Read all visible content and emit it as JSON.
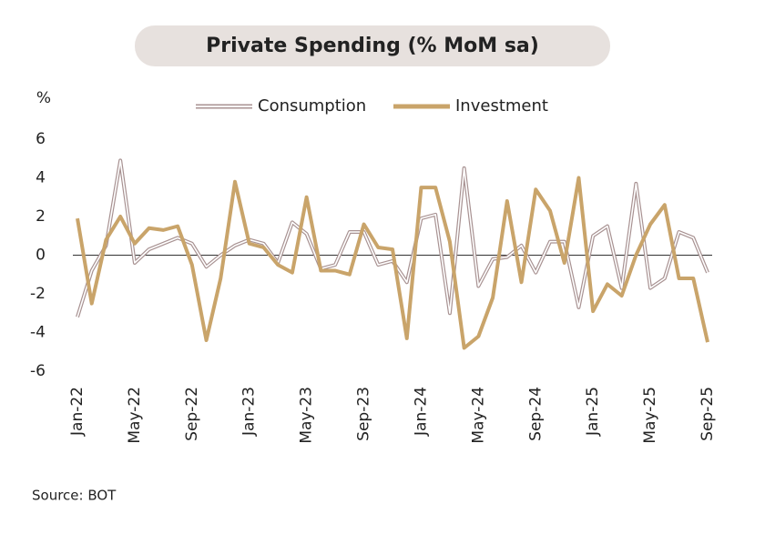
{
  "chart_data": {
    "type": "line",
    "title": "Private Spending (% MoM sa)",
    "y_label": "%",
    "source": "Source: BOT",
    "categories": [
      "Jan-22",
      null,
      null,
      null,
      "May-22",
      null,
      null,
      null,
      "Sep-22",
      null,
      null,
      null,
      "Jan-23",
      null,
      null,
      null,
      "May-23",
      null,
      null,
      null,
      "Sep-23",
      null,
      null,
      null,
      "Jan-24",
      null,
      null,
      null,
      "May-24",
      null,
      null,
      null,
      "Sep-24",
      null,
      null,
      null,
      "Jan-25",
      null,
      null,
      null,
      "May-25",
      null,
      null,
      null,
      "Sep-25"
    ],
    "series": [
      {
        "name": "Consumption",
        "color": "#a89292",
        "style": "double",
        "values": [
          -3.2,
          -0.8,
          0.5,
          4.9,
          -0.4,
          0.3,
          0.6,
          0.9,
          0.6,
          -0.6,
          0.0,
          0.5,
          0.8,
          0.6,
          -0.4,
          1.7,
          1.1,
          -0.7,
          -0.5,
          1.2,
          1.2,
          -0.5,
          -0.3,
          -1.4,
          1.9,
          2.1,
          -3.0,
          4.5,
          -1.6,
          -0.2,
          -0.1,
          0.5,
          -0.9,
          0.7,
          0.7,
          -2.7,
          1.0,
          1.5,
          -1.7,
          3.7,
          -1.7,
          -1.2,
          1.2,
          0.9,
          -0.9
        ]
      },
      {
        "name": "Investment",
        "color": "#c9a46a",
        "style": "solid",
        "values": [
          1.9,
          -2.5,
          0.8,
          2.0,
          0.6,
          1.4,
          1.3,
          1.5,
          -0.5,
          -4.4,
          -1.2,
          3.8,
          0.6,
          0.4,
          -0.5,
          -0.9,
          3.0,
          -0.8,
          -0.8,
          -1.0,
          1.6,
          0.4,
          0.3,
          -4.3,
          3.5,
          3.5,
          0.7,
          -4.8,
          -4.2,
          -2.2,
          2.8,
          -1.4,
          3.4,
          2.3,
          -0.4,
          4.0,
          -2.9,
          -1.5,
          -2.1,
          0.0,
          1.6,
          2.6,
          -1.2,
          -1.2,
          -4.5
        ]
      }
    ],
    "ylim": [
      -6,
      6
    ],
    "yticks": [
      -6,
      -4,
      -2,
      0,
      2,
      4,
      6
    ]
  }
}
